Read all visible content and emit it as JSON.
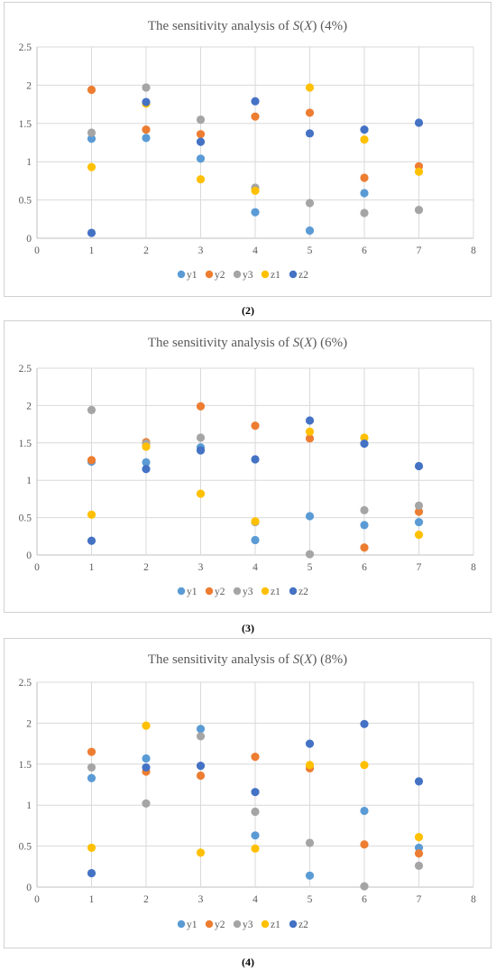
{
  "colors": {
    "y1": "#5b9bd5",
    "y2": "#ed7d31",
    "y3": "#a5a5a5",
    "z1": "#ffc000",
    "z2": "#4472c4",
    "grid": "#d9d9d9",
    "axis": "#bfbfbf",
    "text": "#595959"
  },
  "chart_data": [
    {
      "type": "scatter",
      "title_prefix": "The sensitivity analysis of ",
      "title_func": "S",
      "title_var": "X",
      "title_suffix": " (4%)",
      "caption": "(2)",
      "xlim": [
        0,
        8
      ],
      "ylim": [
        0,
        2.5
      ],
      "x_ticks": [
        "0",
        "1",
        "2",
        "3",
        "4",
        "5",
        "6",
        "7",
        "8"
      ],
      "y_ticks": [
        "0",
        "0.5",
        "1",
        "1.5",
        "2",
        "2.5"
      ],
      "grid": "vertical and horizontal",
      "legend": "bottom",
      "x": [
        1,
        2,
        3,
        4,
        5,
        6,
        7
      ],
      "series": [
        {
          "name": "y1",
          "values": [
            1.3,
            1.31,
            1.04,
            0.34,
            0.1,
            0.59,
            null
          ]
        },
        {
          "name": "y2",
          "values": [
            1.94,
            1.42,
            1.36,
            1.59,
            1.64,
            0.79,
            0.94
          ]
        },
        {
          "name": "y3",
          "values": [
            1.38,
            1.97,
            1.55,
            0.66,
            0.46,
            0.33,
            0.37
          ]
        },
        {
          "name": "z1",
          "values": [
            0.93,
            1.76,
            0.77,
            0.62,
            1.97,
            1.29,
            0.87
          ]
        },
        {
          "name": "z2",
          "values": [
            0.07,
            1.78,
            1.26,
            1.79,
            1.37,
            1.42,
            1.51
          ]
        }
      ]
    },
    {
      "type": "scatter",
      "title_prefix": "The sensitivity analysis of ",
      "title_func": "S",
      "title_var": "X",
      "title_suffix": " (6%)",
      "caption": "(3)",
      "xlim": [
        0,
        8
      ],
      "ylim": [
        0,
        2.5
      ],
      "x_ticks": [
        "0",
        "1",
        "2",
        "3",
        "4",
        "5",
        "6",
        "7",
        "8"
      ],
      "y_ticks": [
        "0",
        "0.5",
        "1",
        "1.5",
        "2",
        "2.5"
      ],
      "grid": "vertical and horizontal",
      "legend": "bottom",
      "x": [
        1,
        2,
        3,
        4,
        5,
        6,
        7
      ],
      "series": [
        {
          "name": "y1",
          "values": [
            1.25,
            1.24,
            1.44,
            0.2,
            0.52,
            0.4,
            0.44
          ]
        },
        {
          "name": "y2",
          "values": [
            1.27,
            1.51,
            1.99,
            1.73,
            1.56,
            0.1,
            0.58
          ]
        },
        {
          "name": "y3",
          "values": [
            1.94,
            1.49,
            1.57,
            0.44,
            0.01,
            0.6,
            0.66
          ]
        },
        {
          "name": "z1",
          "values": [
            0.54,
            1.45,
            0.82,
            0.45,
            1.65,
            1.57,
            0.27
          ]
        },
        {
          "name": "z2",
          "values": [
            0.19,
            1.15,
            1.4,
            1.28,
            1.8,
            1.49,
            1.19
          ]
        }
      ]
    },
    {
      "type": "scatter",
      "title_prefix": "The sensitivity analysis of ",
      "title_func": "S",
      "title_var": "X",
      "title_suffix": " (8%)",
      "caption": "(4)",
      "xlim": [
        0,
        8
      ],
      "ylim": [
        0,
        2.5
      ],
      "x_ticks": [
        "0",
        "1",
        "2",
        "3",
        "4",
        "5",
        "6",
        "7",
        "8"
      ],
      "y_ticks": [
        "0",
        "0.5",
        "1",
        "1.5",
        "2",
        "2.5"
      ],
      "grid": "vertical and horizontal",
      "legend": "bottom",
      "x": [
        1,
        2,
        3,
        4,
        5,
        6,
        7
      ],
      "series": [
        {
          "name": "y1",
          "values": [
            1.33,
            1.57,
            1.93,
            0.63,
            0.14,
            0.93,
            0.48
          ]
        },
        {
          "name": "y2",
          "values": [
            1.65,
            1.41,
            1.36,
            1.59,
            1.45,
            0.52,
            0.41
          ]
        },
        {
          "name": "y3",
          "values": [
            1.46,
            1.02,
            1.84,
            0.92,
            0.54,
            0.01,
            0.26
          ]
        },
        {
          "name": "z1",
          "values": [
            0.48,
            1.97,
            0.42,
            0.47,
            1.49,
            1.49,
            0.61
          ]
        },
        {
          "name": "z2",
          "values": [
            0.17,
            1.46,
            1.48,
            1.16,
            1.75,
            1.99,
            1.29
          ]
        }
      ]
    }
  ]
}
